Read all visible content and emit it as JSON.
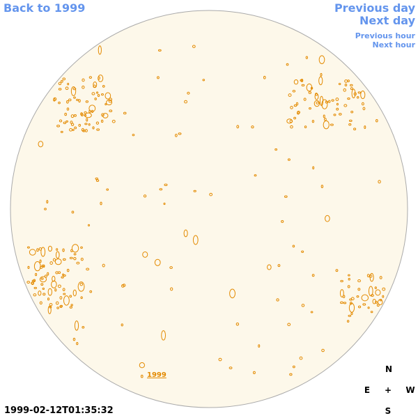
{
  "nav": {
    "back": "Back to 1999",
    "previous_day": "Previous day",
    "next_day": "Next day",
    "previous_hour": "Previous hour",
    "next_hour": "Next hour"
  },
  "disk_label": "1999",
  "compass": {
    "north": "N",
    "east": "E",
    "center": "+",
    "west": "W",
    "south": "S"
  },
  "timestamp": "1999-02-12T01:35:32"
}
